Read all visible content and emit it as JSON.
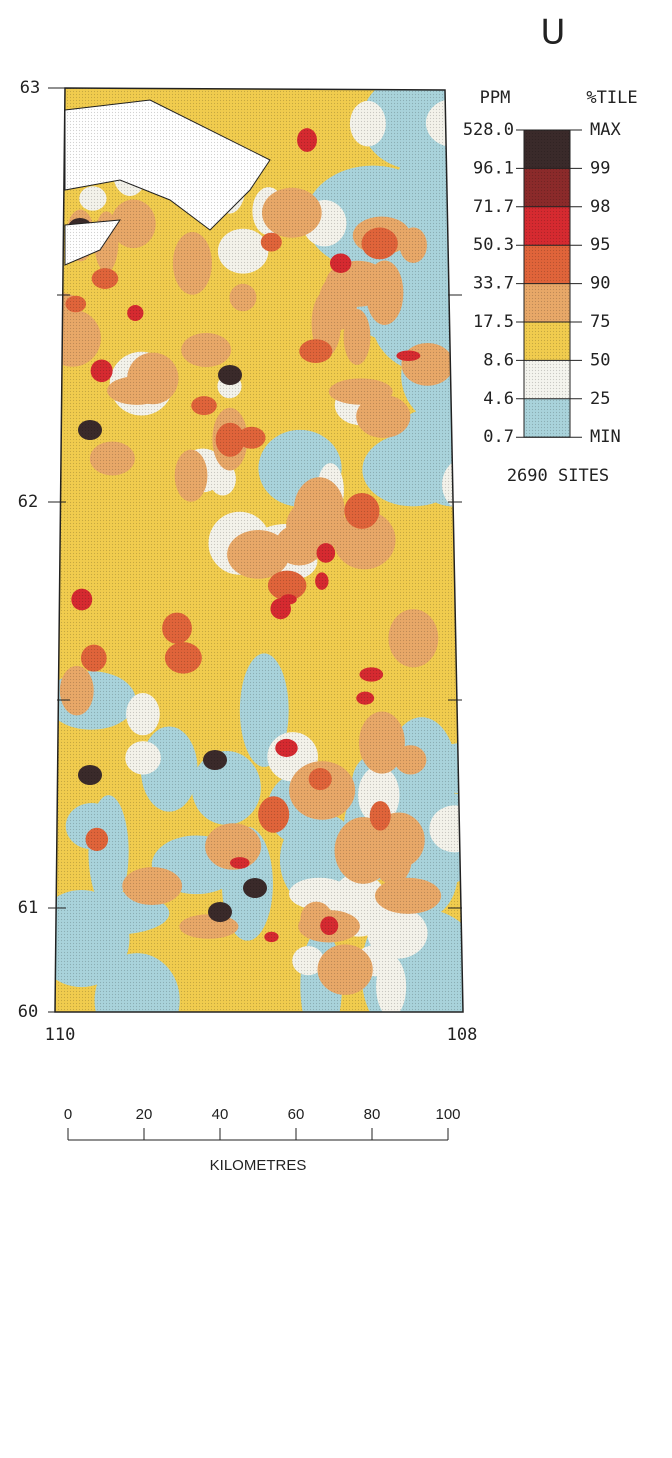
{
  "title": "U",
  "map": {
    "lat_labels": [
      "63",
      "62",
      "61",
      "60"
    ],
    "lon_labels": [
      "110",
      "108"
    ]
  },
  "legend": {
    "ppm_header": "PPM",
    "percentile_header": "%TILE",
    "ppm": [
      "528.0",
      "96.1",
      "71.7",
      "50.3",
      "33.7",
      "17.5",
      "8.6",
      "4.6",
      "0.7"
    ],
    "percentile": [
      "MAX",
      "99",
      "98",
      "95",
      "90",
      "75",
      "50",
      "25",
      "MIN"
    ],
    "sites": "2690 SITES"
  },
  "scale": {
    "ticks": [
      "0",
      "20",
      "40",
      "60",
      "80",
      "100"
    ],
    "label": "KILOMETRES"
  }
}
